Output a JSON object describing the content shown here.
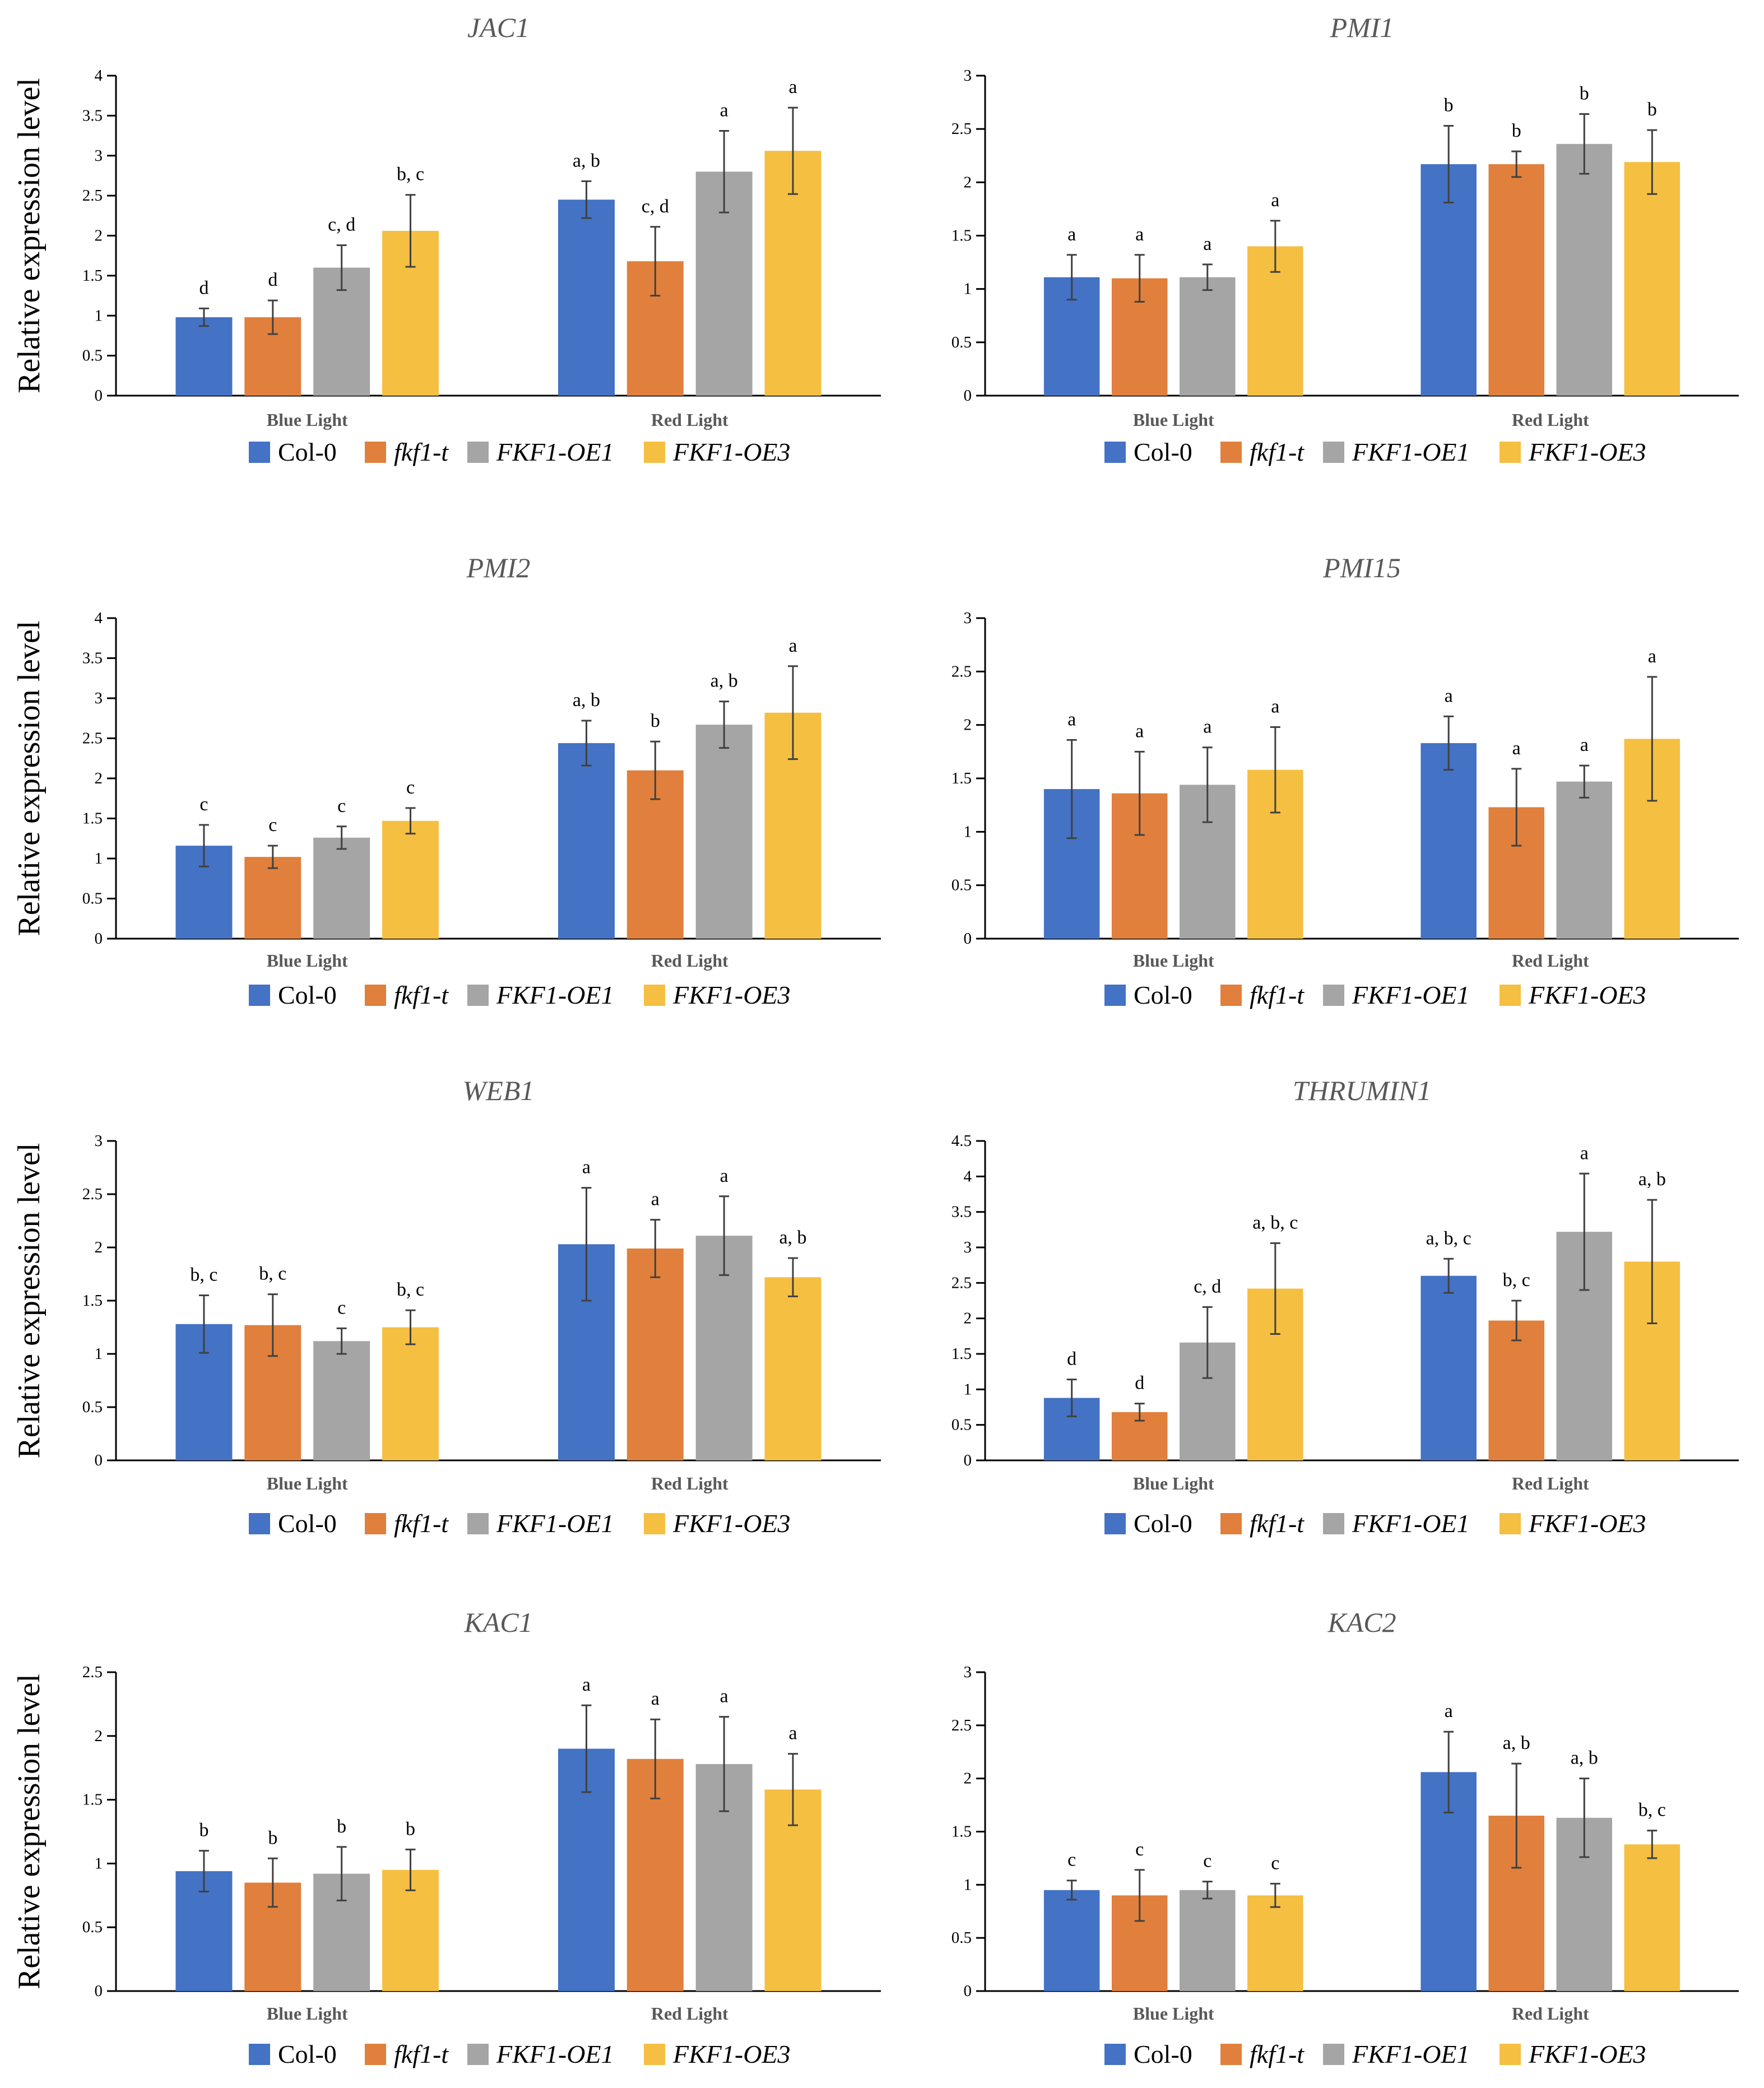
{
  "colors": {
    "Col-0": "#4472C4",
    "fkf1-t": "#E0803C",
    "FKF1-OE1": "#A5A5A5",
    "FKF1-OE3": "#F5BF42"
  },
  "legend": {
    "entries": [
      "Col-0",
      "fkf1-t",
      "FKF1-OE1",
      "FKF1-OE3"
    ],
    "italic": [
      false,
      true,
      true,
      true
    ]
  },
  "ylabel": "Relative expression level",
  "groups": [
    "Blue Light",
    "Red Light"
  ],
  "chart_data": [
    {
      "type": "bar",
      "title": "JAC1",
      "categories": [
        "Blue Light",
        "Red Light"
      ],
      "ylabel": "Relative expression level",
      "ylim": [
        0,
        4
      ],
      "yticks": [
        "0",
        "0.5",
        "1",
        "1.5",
        "2",
        "2.5",
        "3",
        "3.5",
        "4"
      ],
      "series": [
        {
          "name": "Col-0",
          "values": [
            0.98,
            2.45
          ],
          "errors": [
            0.11,
            0.23
          ],
          "labels": [
            "d",
            "a, b"
          ]
        },
        {
          "name": "fkf1-t",
          "values": [
            0.98,
            1.68
          ],
          "errors": [
            0.21,
            0.43
          ],
          "labels": [
            "d",
            "c, d"
          ]
        },
        {
          "name": "FKF1-OE1",
          "values": [
            1.6,
            2.8
          ],
          "errors": [
            0.28,
            0.51
          ],
          "labels": [
            "c, d",
            "a"
          ]
        },
        {
          "name": "FKF1-OE3",
          "values": [
            2.06,
            3.06
          ],
          "errors": [
            0.45,
            0.54
          ],
          "labels": [
            "b, c",
            "a"
          ]
        }
      ]
    },
    {
      "type": "bar",
      "title": "PMI1",
      "categories": [
        "Blue Light",
        "Red Light"
      ],
      "ylabel": "",
      "ylim": [
        0,
        3
      ],
      "yticks": [
        "0",
        "0.5",
        "1",
        "1.5",
        "2",
        "2.5",
        "3"
      ],
      "series": [
        {
          "name": "Col-0",
          "values": [
            1.11,
            2.17
          ],
          "errors": [
            0.21,
            0.36
          ],
          "labels": [
            "a",
            "b"
          ]
        },
        {
          "name": "fkf1-t",
          "values": [
            1.1,
            2.17
          ],
          "errors": [
            0.22,
            0.12
          ],
          "labels": [
            "a",
            "b"
          ]
        },
        {
          "name": "FKF1-OE1",
          "values": [
            1.11,
            2.36
          ],
          "errors": [
            0.12,
            0.28
          ],
          "labels": [
            "a",
            "b"
          ]
        },
        {
          "name": "FKF1-OE3",
          "values": [
            1.4,
            2.19
          ],
          "errors": [
            0.24,
            0.3
          ],
          "labels": [
            "a",
            "b"
          ]
        }
      ]
    },
    {
      "type": "bar",
      "title": "PMI2",
      "categories": [
        "Blue Light",
        "Red Light"
      ],
      "ylabel": "Relative expression level",
      "ylim": [
        0,
        4
      ],
      "yticks": [
        "0",
        "0.5",
        "1",
        "1.5",
        "2",
        "2.5",
        "3",
        "3.5",
        "4"
      ],
      "series": [
        {
          "name": "Col-0",
          "values": [
            1.16,
            2.44
          ],
          "errors": [
            0.26,
            0.28
          ],
          "labels": [
            "c",
            "a, b"
          ]
        },
        {
          "name": "fkf1-t",
          "values": [
            1.02,
            2.1
          ],
          "errors": [
            0.14,
            0.36
          ],
          "labels": [
            "c",
            "b"
          ]
        },
        {
          "name": "FKF1-OE1",
          "values": [
            1.26,
            2.67
          ],
          "errors": [
            0.14,
            0.29
          ],
          "labels": [
            "c",
            "a, b"
          ]
        },
        {
          "name": "FKF1-OE3",
          "values": [
            1.47,
            2.82
          ],
          "errors": [
            0.16,
            0.58
          ],
          "labels": [
            "c",
            "a"
          ]
        }
      ]
    },
    {
      "type": "bar",
      "title": "PMI15",
      "categories": [
        "Blue Light",
        "Red Light"
      ],
      "ylabel": "",
      "ylim": [
        0,
        3
      ],
      "yticks": [
        "0",
        "0.5",
        "1",
        "1.5",
        "2",
        "2.5",
        "3"
      ],
      "series": [
        {
          "name": "Col-0",
          "values": [
            1.4,
            1.83
          ],
          "errors": [
            0.46,
            0.25
          ],
          "labels": [
            "a",
            "a"
          ]
        },
        {
          "name": "fkf1-t",
          "values": [
            1.36,
            1.23
          ],
          "errors": [
            0.39,
            0.36
          ],
          "labels": [
            "a",
            "a"
          ]
        },
        {
          "name": "FKF1-OE1",
          "values": [
            1.44,
            1.47
          ],
          "errors": [
            0.35,
            0.15
          ],
          "labels": [
            "a",
            "a"
          ]
        },
        {
          "name": "FKF1-OE3",
          "values": [
            1.58,
            1.87
          ],
          "errors": [
            0.4,
            0.58
          ],
          "labels": [
            "a",
            "a"
          ]
        }
      ]
    },
    {
      "type": "bar",
      "title": "WEB1",
      "categories": [
        "Blue Light",
        "Red Light"
      ],
      "ylabel": "Relative expression level",
      "ylim": [
        0,
        3
      ],
      "yticks": [
        "0",
        "0.5",
        "1",
        "1.5",
        "2",
        "2.5",
        "3"
      ],
      "series": [
        {
          "name": "Col-0",
          "values": [
            1.28,
            2.03
          ],
          "errors": [
            0.27,
            0.53
          ],
          "labels": [
            "b, c",
            "a"
          ]
        },
        {
          "name": "fkf1-t",
          "values": [
            1.27,
            1.99
          ],
          "errors": [
            0.29,
            0.27
          ],
          "labels": [
            "b, c",
            "a"
          ]
        },
        {
          "name": "FKF1-OE1",
          "values": [
            1.12,
            2.11
          ],
          "errors": [
            0.12,
            0.37
          ],
          "labels": [
            "c",
            "a"
          ]
        },
        {
          "name": "FKF1-OE3",
          "values": [
            1.25,
            1.72
          ],
          "errors": [
            0.16,
            0.18
          ],
          "labels": [
            "b, c",
            "a, b"
          ]
        }
      ]
    },
    {
      "type": "bar",
      "title": "THRUMIN1",
      "categories": [
        "Blue Light",
        "Red Light"
      ],
      "ylabel": "",
      "ylim": [
        0,
        4.5
      ],
      "yticks": [
        "0",
        "0.5",
        "1",
        "1.5",
        "2",
        "2.5",
        "3",
        "3.5",
        "4",
        "4.5"
      ],
      "series": [
        {
          "name": "Col-0",
          "values": [
            0.88,
            2.6
          ],
          "errors": [
            0.26,
            0.24
          ],
          "labels": [
            "d",
            "a, b, c"
          ]
        },
        {
          "name": "fkf1-t",
          "values": [
            0.68,
            1.97
          ],
          "errors": [
            0.12,
            0.28
          ],
          "labels": [
            "d",
            "b, c"
          ]
        },
        {
          "name": "FKF1-OE1",
          "values": [
            1.66,
            3.22
          ],
          "errors": [
            0.5,
            0.82
          ],
          "labels": [
            "c, d",
            "a"
          ]
        },
        {
          "name": "FKF1-OE3",
          "values": [
            2.42,
            2.8
          ],
          "errors": [
            0.64,
            0.87
          ],
          "labels": [
            "a, b, c",
            "a, b"
          ]
        }
      ]
    },
    {
      "type": "bar",
      "title": "KAC1",
      "categories": [
        "Blue Light",
        "Red Light"
      ],
      "ylabel": "Relative expression level",
      "ylim": [
        0,
        2.5
      ],
      "yticks": [
        "0",
        "0.5",
        "1",
        "1.5",
        "2",
        "2.5"
      ],
      "series": [
        {
          "name": "Col-0",
          "values": [
            0.94,
            1.9
          ],
          "errors": [
            0.16,
            0.34
          ],
          "labels": [
            "b",
            "a"
          ]
        },
        {
          "name": "fkf1-t",
          "values": [
            0.85,
            1.82
          ],
          "errors": [
            0.19,
            0.31
          ],
          "labels": [
            "b",
            "a"
          ]
        },
        {
          "name": "FKF1-OE1",
          "values": [
            0.92,
            1.78
          ],
          "errors": [
            0.21,
            0.37
          ],
          "labels": [
            "b",
            "a"
          ]
        },
        {
          "name": "FKF1-OE3",
          "values": [
            0.95,
            1.58
          ],
          "errors": [
            0.16,
            0.28
          ],
          "labels": [
            "b",
            "a"
          ]
        }
      ]
    },
    {
      "type": "bar",
      "title": "KAC2",
      "categories": [
        "Blue Light",
        "Red Light"
      ],
      "ylabel": "",
      "ylim": [
        0,
        3
      ],
      "yticks": [
        "0",
        "0.5",
        "1",
        "1.5",
        "2",
        "2.5",
        "3"
      ],
      "series": [
        {
          "name": "Col-0",
          "values": [
            0.95,
            2.06
          ],
          "errors": [
            0.09,
            0.38
          ],
          "labels": [
            "c",
            "a"
          ]
        },
        {
          "name": "fkf1-t",
          "values": [
            0.9,
            1.65
          ],
          "errors": [
            0.24,
            0.49
          ],
          "labels": [
            "c",
            "a, b"
          ]
        },
        {
          "name": "FKF1-OE1",
          "values": [
            0.95,
            1.63
          ],
          "errors": [
            0.08,
            0.37
          ],
          "labels": [
            "c",
            "a, b"
          ]
        },
        {
          "name": "FKF1-OE3",
          "values": [
            0.9,
            1.38
          ],
          "errors": [
            0.11,
            0.13
          ],
          "labels": [
            "c",
            "b, c"
          ]
        }
      ]
    }
  ]
}
